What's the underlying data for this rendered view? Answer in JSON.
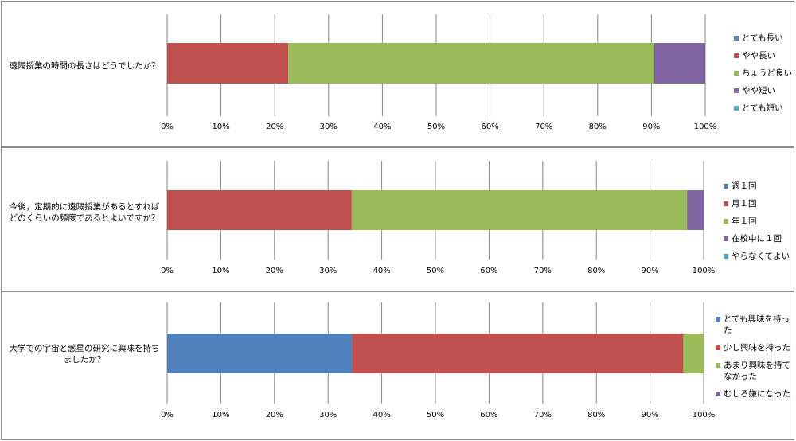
{
  "colors": {
    "blue": "#4f81bd",
    "red": "#c0504d",
    "green": "#9bbb59",
    "purple": "#8064a2",
    "cyan": "#4bacc6",
    "grid": "#868686"
  },
  "chart_data": [
    {
      "type": "bar",
      "orientation": "horizontal",
      "stacked": true,
      "categories": [
        "遠隔授業の時間の長さはどうでしたか？"
      ],
      "question": "遠隔授業の時間の長さはどうでしたか？",
      "series": [
        {
          "name": "とても長い",
          "values": [
            0
          ],
          "color": "#4f81bd"
        },
        {
          "name": "やや長い",
          "values": [
            22.5
          ],
          "color": "#c0504d"
        },
        {
          "name": "ちょうど良い",
          "values": [
            68
          ],
          "color": "#9bbb59"
        },
        {
          "name": "やや短い",
          "values": [
            9.5
          ],
          "color": "#8064a2"
        },
        {
          "name": "とても短い",
          "values": [
            0
          ],
          "color": "#4bacc6"
        }
      ],
      "xticks": [
        "0%",
        "10%",
        "20%",
        "30%",
        "40%",
        "50%",
        "60%",
        "70%",
        "80%",
        "90%",
        "100%"
      ],
      "xlim": [
        0,
        100
      ],
      "grid": true,
      "legend": "right"
    },
    {
      "type": "bar",
      "orientation": "horizontal",
      "stacked": true,
      "categories": [
        "今後，定期的に遠隔授業があるとすればどのくらいの頻度であるとよいですか？"
      ],
      "question": "今後，定期的に遠隔授業があるとすればどのくらいの頻度であるとよいですか？",
      "series": [
        {
          "name": "週１回",
          "values": [
            0
          ],
          "color": "#4f81bd"
        },
        {
          "name": "月１回",
          "values": [
            34.4
          ],
          "color": "#c0504d"
        },
        {
          "name": "年１回",
          "values": [
            62.5
          ],
          "color": "#9bbb59"
        },
        {
          "name": "在校中に１回",
          "values": [
            3.1
          ],
          "color": "#8064a2"
        },
        {
          "name": "やらなくてよい",
          "values": [
            0
          ],
          "color": "#4bacc6"
        }
      ],
      "xticks": [
        "0%",
        "10%",
        "20%",
        "30%",
        "40%",
        "50%",
        "60%",
        "70%",
        "80%",
        "90%",
        "100%"
      ],
      "xlim": [
        0,
        100
      ],
      "grid": true,
      "legend": "right"
    },
    {
      "type": "bar",
      "orientation": "horizontal",
      "stacked": true,
      "categories": [
        "大学での宇宙と惑星の研究に興味を持ちましたか？"
      ],
      "question": "大学での宇宙と惑星の研究に興味を持ちましたか？",
      "series": [
        {
          "name": "とても興味を持った",
          "values": [
            34.5
          ],
          "color": "#4f81bd"
        },
        {
          "name": "少し興味を持った",
          "values": [
            61.7
          ],
          "color": "#c0504d"
        },
        {
          "name": "あまり興味を持てなかった",
          "values": [
            3.8
          ],
          "color": "#9bbb59"
        },
        {
          "name": "むしろ嫌になった",
          "values": [
            0
          ],
          "color": "#8064a2"
        }
      ],
      "xticks": [
        "0%",
        "10%",
        "20%",
        "30%",
        "40%",
        "50%",
        "60%",
        "70%",
        "80%",
        "90%",
        "100%"
      ],
      "xlim": [
        0,
        100
      ],
      "grid": true,
      "legend": "right"
    }
  ],
  "panels": [
    {
      "question_lines": [
        "遠隔授業の時間の長さはどうでしたか？"
      ]
    },
    {
      "question_lines": [
        "今後，定期的に遠隔授業があるとすれば",
        "どのくらいの頻度であるとよいですか？"
      ]
    },
    {
      "question_lines": [
        "大学での宇宙と惑星の研究に興味を持ち",
        "ましたか？"
      ]
    }
  ]
}
